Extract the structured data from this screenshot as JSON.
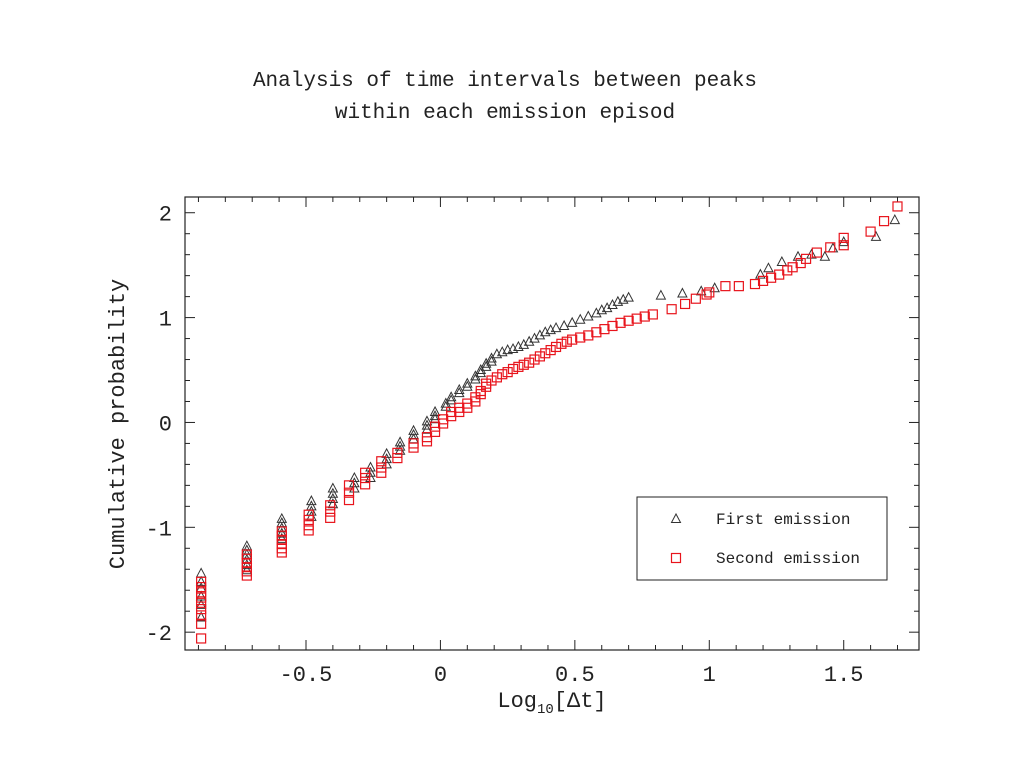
{
  "chart_data": {
    "type": "scatter",
    "title": [
      "Analysis of time intervals between peaks",
      "within each emission episod"
    ],
    "xlabel": "Log",
    "xlabel_sub": "10",
    "xlabel_rest": "[Δt]",
    "ylabel": "Cumulative probability",
    "xlim": [
      -0.95,
      1.78
    ],
    "ylim": [
      -2.17,
      2.15
    ],
    "xticks": [
      {
        "v": -0.5,
        "label": "-0.5"
      },
      {
        "v": 0,
        "label": "0"
      },
      {
        "v": 0.5,
        "label": "0.5"
      },
      {
        "v": 1,
        "label": "1"
      },
      {
        "v": 1.5,
        "label": "1.5"
      }
    ],
    "yticks": [
      {
        "v": -2,
        "label": "-2"
      },
      {
        "v": -1,
        "label": "-1"
      },
      {
        "v": 0,
        "label": "0"
      },
      {
        "v": 1,
        "label": "1"
      },
      {
        "v": 2,
        "label": "2"
      }
    ],
    "grid": false,
    "legend_position": "lower-right",
    "series": [
      {
        "name": "First emission",
        "marker": "triangle",
        "color": "#333333",
        "points": [
          [
            -0.89,
            -1.44
          ],
          [
            -0.89,
            -1.52
          ],
          [
            -0.89,
            -1.58
          ],
          [
            -0.89,
            -1.66
          ],
          [
            -0.89,
            -1.74
          ],
          [
            -0.89,
            -1.86
          ],
          [
            -0.72,
            -1.18
          ],
          [
            -0.72,
            -1.22
          ],
          [
            -0.72,
            -1.26
          ],
          [
            -0.72,
            -1.31
          ],
          [
            -0.72,
            -1.36
          ],
          [
            -0.72,
            -1.41
          ],
          [
            -0.59,
            -0.92
          ],
          [
            -0.59,
            -0.96
          ],
          [
            -0.59,
            -1.01
          ],
          [
            -0.59,
            -1.06
          ],
          [
            -0.59,
            -1.11
          ],
          [
            -0.48,
            -0.75
          ],
          [
            -0.48,
            -0.8
          ],
          [
            -0.48,
            -0.85
          ],
          [
            -0.48,
            -0.9
          ],
          [
            -0.4,
            -0.63
          ],
          [
            -0.4,
            -0.68
          ],
          [
            -0.4,
            -0.73
          ],
          [
            -0.4,
            -0.78
          ],
          [
            -0.32,
            -0.53
          ],
          [
            -0.32,
            -0.58
          ],
          [
            -0.32,
            -0.63
          ],
          [
            -0.26,
            -0.43
          ],
          [
            -0.26,
            -0.48
          ],
          [
            -0.26,
            -0.53
          ],
          [
            -0.2,
            -0.3
          ],
          [
            -0.2,
            -0.35
          ],
          [
            -0.2,
            -0.4
          ],
          [
            -0.15,
            -0.19
          ],
          [
            -0.15,
            -0.23
          ],
          [
            -0.15,
            -0.27
          ],
          [
            -0.1,
            -0.08
          ],
          [
            -0.1,
            -0.12
          ],
          [
            -0.1,
            -0.16
          ],
          [
            -0.05,
            0.01
          ],
          [
            -0.05,
            -0.03
          ],
          [
            -0.05,
            -0.07
          ],
          [
            -0.02,
            0.1
          ],
          [
            -0.02,
            0.06
          ],
          [
            -0.02,
            0.03
          ],
          [
            0.02,
            0.18
          ],
          [
            0.02,
            0.15
          ],
          [
            0.04,
            0.24
          ],
          [
            0.04,
            0.21
          ],
          [
            0.07,
            0.31
          ],
          [
            0.07,
            0.28
          ],
          [
            0.1,
            0.37
          ],
          [
            0.1,
            0.34
          ],
          [
            0.13,
            0.44
          ],
          [
            0.13,
            0.41
          ],
          [
            0.15,
            0.5
          ],
          [
            0.15,
            0.47
          ],
          [
            0.17,
            0.56
          ],
          [
            0.17,
            0.53
          ],
          [
            0.19,
            0.61
          ],
          [
            0.19,
            0.58
          ],
          [
            0.21,
            0.65
          ],
          [
            0.23,
            0.67
          ],
          [
            0.25,
            0.69
          ],
          [
            0.27,
            0.7
          ],
          [
            0.29,
            0.72
          ],
          [
            0.31,
            0.74
          ],
          [
            0.33,
            0.77
          ],
          [
            0.35,
            0.8
          ],
          [
            0.37,
            0.83
          ],
          [
            0.39,
            0.86
          ],
          [
            0.41,
            0.88
          ],
          [
            0.43,
            0.9
          ],
          [
            0.46,
            0.92
          ],
          [
            0.49,
            0.95
          ],
          [
            0.52,
            0.98
          ],
          [
            0.55,
            1.01
          ],
          [
            0.58,
            1.04
          ],
          [
            0.6,
            1.07
          ],
          [
            0.62,
            1.09
          ],
          [
            0.64,
            1.12
          ],
          [
            0.66,
            1.15
          ],
          [
            0.68,
            1.17
          ],
          [
            0.7,
            1.19
          ],
          [
            0.82,
            1.21
          ],
          [
            0.9,
            1.23
          ],
          [
            0.97,
            1.25
          ],
          [
            1.02,
            1.28
          ],
          [
            1.19,
            1.41
          ],
          [
            1.22,
            1.47
          ],
          [
            1.27,
            1.53
          ],
          [
            1.33,
            1.58
          ],
          [
            1.38,
            1.6
          ],
          [
            1.43,
            1.58
          ],
          [
            1.46,
            1.66
          ],
          [
            1.5,
            1.72
          ],
          [
            1.62,
            1.77
          ],
          [
            1.69,
            1.93
          ]
        ]
      },
      {
        "name": "Second emission",
        "marker": "square",
        "color": "#e8141c",
        "points": [
          [
            -0.89,
            -1.52
          ],
          [
            -0.89,
            -1.57
          ],
          [
            -0.89,
            -1.62
          ],
          [
            -0.89,
            -1.67
          ],
          [
            -0.89,
            -1.72
          ],
          [
            -0.89,
            -1.78
          ],
          [
            -0.89,
            -1.84
          ],
          [
            -0.89,
            -1.92
          ],
          [
            -0.89,
            -2.06
          ],
          [
            -0.72,
            -1.26
          ],
          [
            -0.72,
            -1.3
          ],
          [
            -0.72,
            -1.34
          ],
          [
            -0.72,
            -1.38
          ],
          [
            -0.72,
            -1.42
          ],
          [
            -0.72,
            -1.46
          ],
          [
            -0.59,
            -1.04
          ],
          [
            -0.59,
            -1.08
          ],
          [
            -0.59,
            -1.12
          ],
          [
            -0.59,
            -1.16
          ],
          [
            -0.59,
            -1.2
          ],
          [
            -0.59,
            -1.24
          ],
          [
            -0.49,
            -0.88
          ],
          [
            -0.49,
            -0.93
          ],
          [
            -0.49,
            -0.98
          ],
          [
            -0.49,
            -1.03
          ],
          [
            -0.41,
            -0.79
          ],
          [
            -0.41,
            -0.85
          ],
          [
            -0.41,
            -0.91
          ],
          [
            -0.34,
            -0.6
          ],
          [
            -0.34,
            -0.67
          ],
          [
            -0.34,
            -0.74
          ],
          [
            -0.28,
            -0.48
          ],
          [
            -0.28,
            -0.53
          ],
          [
            -0.28,
            -0.59
          ],
          [
            -0.22,
            -0.37
          ],
          [
            -0.22,
            -0.43
          ],
          [
            -0.22,
            -0.48
          ],
          [
            -0.16,
            -0.29
          ],
          [
            -0.16,
            -0.34
          ],
          [
            -0.1,
            -0.2
          ],
          [
            -0.1,
            -0.24
          ],
          [
            -0.05,
            -0.14
          ],
          [
            -0.05,
            -0.18
          ],
          [
            -0.02,
            -0.04
          ],
          [
            -0.02,
            -0.09
          ],
          [
            0.01,
            -0.01
          ],
          [
            0.01,
            0.03
          ],
          [
            0.04,
            0.06
          ],
          [
            0.04,
            0.1
          ],
          [
            0.07,
            0.14
          ],
          [
            0.07,
            0.1
          ],
          [
            0.1,
            0.14
          ],
          [
            0.1,
            0.18
          ],
          [
            0.13,
            0.2
          ],
          [
            0.13,
            0.24
          ],
          [
            0.15,
            0.27
          ],
          [
            0.15,
            0.3
          ],
          [
            0.17,
            0.34
          ],
          [
            0.17,
            0.37
          ],
          [
            0.19,
            0.4
          ],
          [
            0.21,
            0.43
          ],
          [
            0.23,
            0.46
          ],
          [
            0.25,
            0.48
          ],
          [
            0.27,
            0.51
          ],
          [
            0.29,
            0.53
          ],
          [
            0.31,
            0.55
          ],
          [
            0.33,
            0.57
          ],
          [
            0.35,
            0.6
          ],
          [
            0.37,
            0.63
          ],
          [
            0.39,
            0.66
          ],
          [
            0.41,
            0.69
          ],
          [
            0.43,
            0.72
          ],
          [
            0.45,
            0.75
          ],
          [
            0.47,
            0.77
          ],
          [
            0.49,
            0.79
          ],
          [
            0.52,
            0.81
          ],
          [
            0.55,
            0.83
          ],
          [
            0.58,
            0.86
          ],
          [
            0.61,
            0.89
          ],
          [
            0.64,
            0.92
          ],
          [
            0.67,
            0.95
          ],
          [
            0.7,
            0.97
          ],
          [
            0.73,
            0.99
          ],
          [
            0.76,
            1.01
          ],
          [
            0.79,
            1.03
          ],
          [
            0.86,
            1.08
          ],
          [
            0.91,
            1.13
          ],
          [
            0.95,
            1.18
          ],
          [
            0.99,
            1.22
          ],
          [
            1.0,
            1.24
          ],
          [
            1.06,
            1.3
          ],
          [
            1.11,
            1.3
          ],
          [
            1.17,
            1.32
          ],
          [
            1.2,
            1.35
          ],
          [
            1.23,
            1.38
          ],
          [
            1.26,
            1.41
          ],
          [
            1.29,
            1.45
          ],
          [
            1.31,
            1.48
          ],
          [
            1.34,
            1.52
          ],
          [
            1.36,
            1.56
          ],
          [
            1.4,
            1.62
          ],
          [
            1.45,
            1.67
          ],
          [
            1.5,
            1.69
          ],
          [
            1.5,
            1.76
          ],
          [
            1.6,
            1.82
          ],
          [
            1.65,
            1.92
          ],
          [
            1.7,
            2.06
          ]
        ]
      }
    ]
  }
}
